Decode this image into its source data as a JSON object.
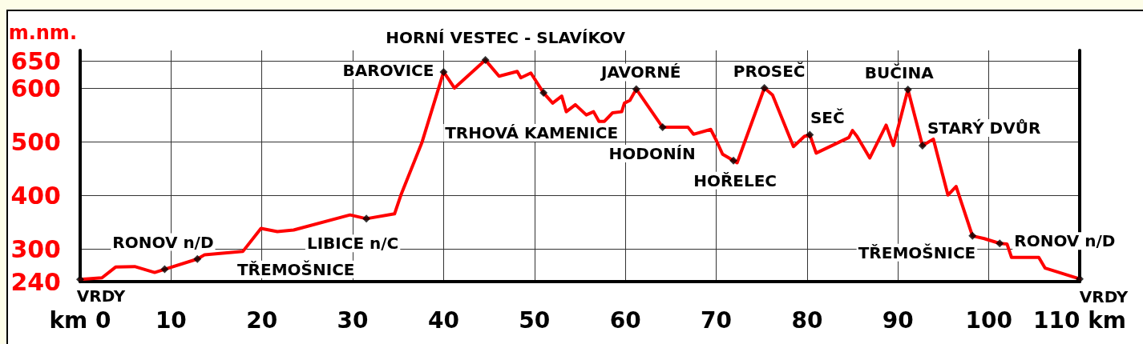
{
  "chart_data": {
    "type": "line",
    "ylabel": "m.nm.",
    "xlim": [
      0,
      110
    ],
    "xticks": [
      {
        "value": 0,
        "label": "km 0"
      },
      10,
      20,
      30,
      40,
      50,
      60,
      70,
      80,
      90,
      100,
      {
        "value": 110,
        "label": "110 km"
      }
    ],
    "ylim": [
      240,
      670
    ],
    "yticks": [
      240,
      300,
      400,
      500,
      600,
      650
    ],
    "grid": true,
    "series": [
      {
        "color": "#ff0000",
        "marker": "none",
        "line_style": "solid",
        "x": [
          0,
          2.4,
          3.9,
          6,
          8.2,
          9.3,
          12.9,
          13.7,
          17.9,
          19.9,
          21.7,
          23.5,
          29.7,
          31.5,
          34.6,
          35.3,
          37.6,
          40,
          41.2,
          44.6,
          46.1,
          48.1,
          48.5,
          49.6,
          51,
          52,
          53,
          53.5,
          54.5,
          55.7,
          56.5,
          57.1,
          57.7,
          58.6,
          59.6,
          59.9,
          60.5,
          61.2,
          64.1,
          66.9,
          67.5,
          69.4,
          70,
          70.7,
          71.9,
          72.3,
          75.3,
          76.2,
          78.5,
          79.7,
          80.3,
          81,
          84.6,
          85,
          85.5,
          86.9,
          88.7,
          89.5,
          91.1,
          92.7,
          93.9,
          95.5,
          96.4,
          98.2,
          99.5,
          101.2,
          102,
          102.5,
          105.5,
          106.2,
          110
        ],
        "values": [
          244,
          247,
          267,
          268,
          257,
          263,
          282,
          290,
          296,
          339,
          333,
          336,
          364,
          357,
          366,
          401,
          498,
          630,
          600,
          652,
          622,
          631,
          619,
          628,
          591,
          572,
          585,
          556,
          569,
          550,
          556,
          538,
          538,
          554,
          556,
          572,
          577,
          598,
          527,
          527,
          514,
          523,
          503,
          477,
          465,
          461,
          600,
          587,
          491,
          510,
          513,
          479,
          508,
          521,
          510,
          470,
          531,
          493,
          597,
          493,
          505,
          401,
          417,
          325,
          320,
          311,
          310,
          285,
          285,
          265,
          245
        ]
      },
      {
        "type": "scatter",
        "color": "#000000",
        "marker": "diamond",
        "x": [
          0,
          9.3,
          12.9,
          31.5,
          40,
          44.6,
          51,
          61.2,
          64.1,
          71.9,
          75.3,
          80.3,
          91.1,
          92.7,
          98.2,
          101.2,
          110
        ],
        "values": [
          244,
          263,
          282,
          357,
          630,
          652,
          591,
          598,
          527,
          465,
          600,
          513,
          597,
          493,
          325,
          311,
          245
        ]
      }
    ],
    "annotations": [
      {
        "text": "VRDY",
        "x": 0,
        "y": 244
      },
      {
        "text": "RONOV n/D",
        "x": 9.3,
        "y": 263
      },
      {
        "text": "TŘEMOŠNICE",
        "x": 12.9,
        "y": 282
      },
      {
        "text": "LIBICE n/C",
        "x": 31.5,
        "y": 357
      },
      {
        "text": "BAROVICE",
        "x": 40,
        "y": 630
      },
      {
        "text": "HORNÍ VESTEC - SLAVÍKOV",
        "x": 44.6,
        "y": 652
      },
      {
        "text": "TRHOVÁ KAMENICE",
        "x": 51,
        "y": 591
      },
      {
        "text": "JAVORNÉ",
        "x": 61.2,
        "y": 598
      },
      {
        "text": "HODONÍN",
        "x": 64.1,
        "y": 527
      },
      {
        "text": "HOŘELEC",
        "x": 71.9,
        "y": 465
      },
      {
        "text": "PROSEČ",
        "x": 75.3,
        "y": 600
      },
      {
        "text": "SEČ",
        "x": 80.3,
        "y": 513
      },
      {
        "text": "BUČINA",
        "x": 91.1,
        "y": 597
      },
      {
        "text": "STARÝ DVŮR",
        "x": 92.7,
        "y": 493
      },
      {
        "text": "TŘEMOŠNICE",
        "x": 98.2,
        "y": 325
      },
      {
        "text": "RONOV n/D",
        "x": 101.2,
        "y": 311
      },
      {
        "text": "VRDY",
        "x": 110,
        "y": 245
      }
    ]
  }
}
